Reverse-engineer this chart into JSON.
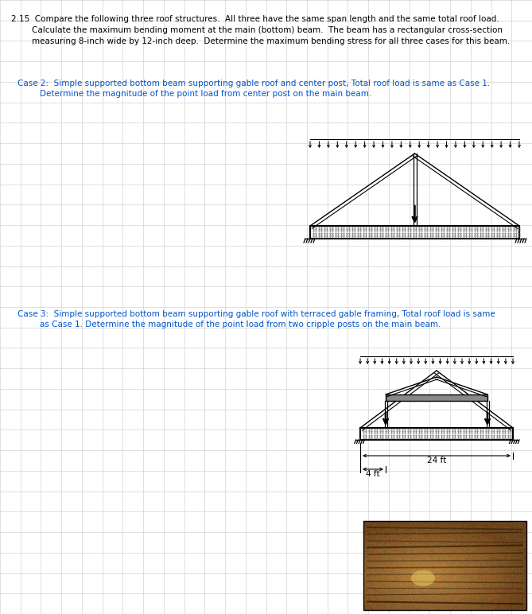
{
  "background_color": "#ffffff",
  "grid_color": "#c8c8c8",
  "grid_color2": "#e0e0e0",
  "text_color": "#000000",
  "blue_text_color": "#0055cc",
  "title_line1": "2.15  Compare the following three roof structures.  All three have the same span length and the same total roof load.",
  "title_line2": "Calculate the maximum bending moment at the main (bottom) beam.  The beam has a rectangular cross-section",
  "title_line3": "measuring 8-inch wide by 12-inch deep.  Determine the maximum bending stress for all three cases for this beam.",
  "case2_line1": "Case 2:  Simple supported bottom beam supporting gable roof and center post, Total roof load is same as Case 1.",
  "case2_line2": "Determine the magnitude of the point load from center post on the main beam.",
  "case3_line1": "Case 3:  Simple supported bottom beam supporting gable roof with terraced gable framing, Total roof load is same",
  "case3_line2": "as Case 1. Determine the magnitude of the point load from two cripple posts on the main beam.",
  "dim_label": "24 ft",
  "dim_label2": "4 ft",
  "fontsize_title": 7.5,
  "fontsize_case": 7.5
}
